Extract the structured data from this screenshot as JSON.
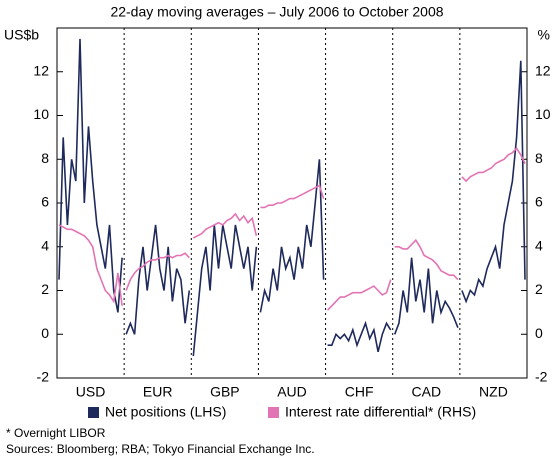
{
  "chart_data": {
    "type": "line",
    "subtitle": "22-day moving averages – July 2006 to October 2008",
    "ylabel": "US$b",
    "y2label": "%",
    "categories": [
      "USD",
      "EUR",
      "GBP",
      "AUD",
      "CHF",
      "CAD",
      "NZD"
    ],
    "ylim": [
      -2,
      14
    ],
    "yticks": [
      -2,
      0,
      2,
      4,
      6,
      8,
      10,
      12
    ],
    "y2lim": [
      -2,
      14
    ],
    "y2ticks": [
      -2,
      0,
      2,
      4,
      6,
      8,
      10,
      12
    ],
    "series": [
      {
        "name": "Net positions (LHS)",
        "color": "#1f2a5c",
        "values": [
          [
            2.5,
            9,
            5,
            8,
            7,
            13.5,
            6,
            9.5,
            7,
            5,
            4,
            3,
            5,
            2,
            1,
            3.5
          ],
          [
            0,
            0.5,
            0,
            2.5,
            4,
            2,
            3.5,
            5,
            3,
            2,
            4,
            1.5,
            3,
            2.5,
            0.5,
            2
          ],
          [
            -1,
            1,
            3,
            4,
            2,
            5,
            3,
            5,
            4,
            3,
            5,
            4,
            3,
            4,
            2,
            4
          ],
          [
            1,
            2,
            1.5,
            3,
            2,
            4,
            3,
            3.5,
            2.5,
            4,
            3,
            5,
            4,
            6,
            8,
            2.5
          ],
          [
            -0.5,
            -0.5,
            0,
            -0.2,
            0,
            -0.3,
            0.2,
            -0.5,
            0,
            0.5,
            -0.2,
            0.2,
            -0.8,
            0,
            0.5,
            0.2
          ],
          [
            0,
            0.5,
            2,
            1,
            3.5,
            1.5,
            2.5,
            1,
            3,
            0.5,
            2,
            1,
            1.5,
            1.2,
            0.8,
            0.3
          ],
          [
            2,
            1.5,
            2,
            1.8,
            2.5,
            2.2,
            3,
            3.5,
            4,
            3,
            5,
            6,
            7,
            9,
            12.5,
            2.5
          ]
        ]
      },
      {
        "name": "Interest rate differential* (RHS)",
        "color": "#e274b4",
        "axis": "y2",
        "values": [
          [
            5,
            4.9,
            4.8,
            4.8,
            4.7,
            4.6,
            4.5,
            4.3,
            4,
            3,
            2.5,
            2,
            1.8,
            1.5,
            2.8,
            1.3
          ],
          [
            2,
            2.5,
            2.8,
            3,
            3.1,
            3.3,
            3.4,
            3.4,
            3.5,
            3.5,
            3.6,
            3.5,
            3.6,
            3.6,
            3.7,
            3.5
          ],
          [
            4.4,
            4.5,
            4.6,
            4.8,
            4.9,
            5,
            5.1,
            5,
            5.2,
            5.3,
            5.5,
            5.2,
            5.4,
            5.1,
            5.3,
            4.5
          ],
          [
            5.8,
            5.8,
            5.9,
            5.9,
            6,
            6,
            6.1,
            6.2,
            6.2,
            6.3,
            6.4,
            6.5,
            6.6,
            6.7,
            6.8,
            6.2
          ],
          [
            1.1,
            1.3,
            1.5,
            1.7,
            1.7,
            1.8,
            1.9,
            1.9,
            1.9,
            2,
            2.1,
            2.2,
            2,
            1.8,
            1.9,
            2.5
          ],
          [
            4,
            4,
            3.9,
            3.9,
            4.1,
            4.3,
            4,
            3.6,
            3.5,
            3.4,
            3.2,
            2.9,
            2.8,
            2.7,
            2.7,
            2.5
          ],
          [
            7.2,
            7,
            7.2,
            7.3,
            7.4,
            7.4,
            7.5,
            7.6,
            7.8,
            7.9,
            8,
            8.2,
            8.3,
            8.5,
            8.2,
            7.8
          ]
        ]
      }
    ],
    "footnote": "*    Overnight LIBOR",
    "source": "Sources: Bloomberg; RBA; Tokyo Financial Exchange Inc."
  }
}
